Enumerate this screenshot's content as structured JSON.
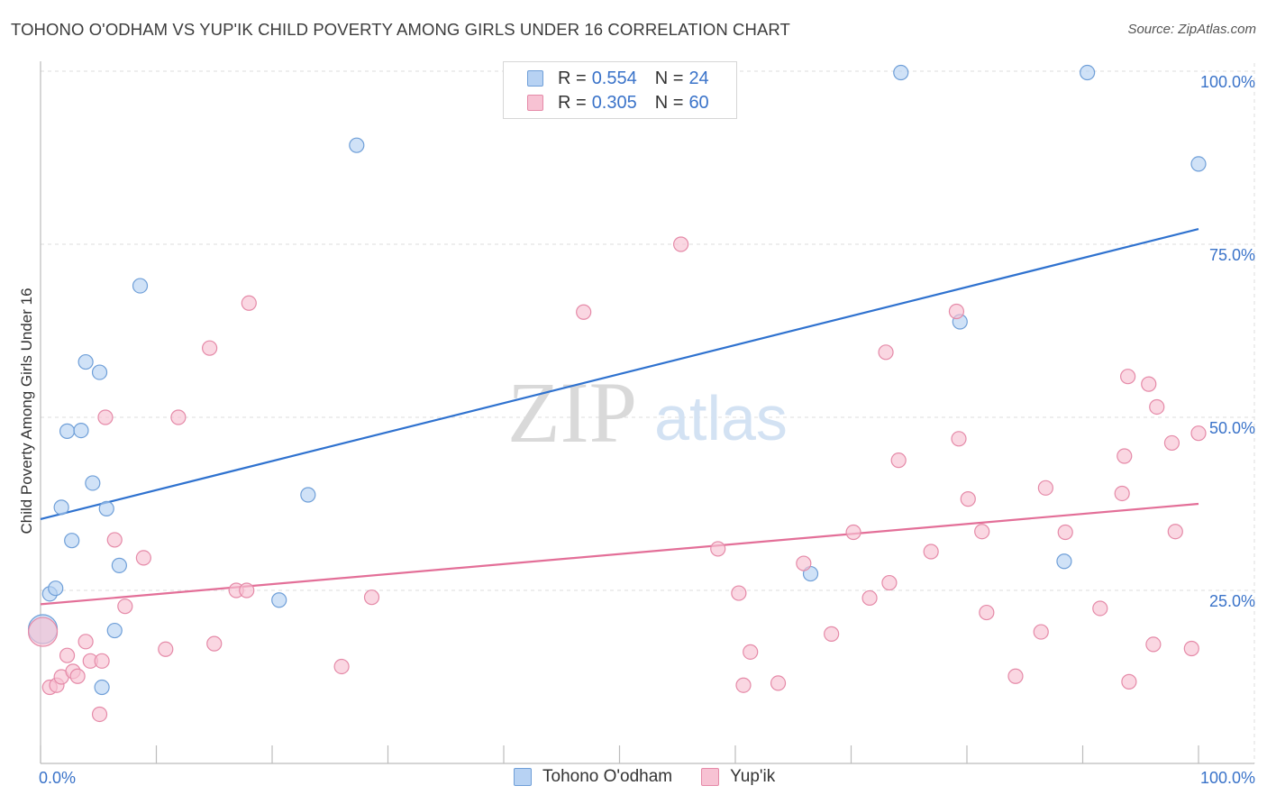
{
  "title": "TOHONO O'ODHAM VS YUP'IK CHILD POVERTY AMONG GIRLS UNDER 16 CORRELATION CHART",
  "source": "Source: ZipAtlas.com",
  "watermark": {
    "zip": "ZIP",
    "atlas": "atlas"
  },
  "colors": {
    "blue_fill": "#b7d2f3",
    "blue_stroke": "#6f9fd8",
    "blue_line": "#2f72cf",
    "pink_fill": "#f7c2d3",
    "pink_stroke": "#e58aa8",
    "pink_line": "#e36f98",
    "grid": "#dcdcdc",
    "axis_text": "#3a73c9"
  },
  "legend": {
    "rows": [
      {
        "r_label": "R =",
        "r_value": "0.554",
        "n_label": "N =",
        "n_value": "24"
      },
      {
        "r_label": "R =",
        "r_value": "0.305",
        "n_label": "N =",
        "n_value": "60"
      }
    ]
  },
  "bottom_legend": {
    "series1": "Tohono O'odham",
    "series2": "Yup'ik"
  },
  "chart_data": {
    "type": "scatter",
    "title": "TOHONO O'ODHAM VS YUP'IK CHILD POVERTY AMONG GIRLS UNDER 16 CORRELATION CHART",
    "xlabel": "",
    "ylabel": "Child Poverty Among Girls Under 16",
    "xlim": [
      0,
      100
    ],
    "ylim": [
      0,
      102
    ],
    "x_tick_labels": [
      "0.0%",
      "100.0%"
    ],
    "y_tick_labels": [
      {
        "value": 25,
        "label": "25.0%"
      },
      {
        "value": 50,
        "label": "50.0%"
      },
      {
        "value": 75,
        "label": "75.0%"
      },
      {
        "value": 100,
        "label": "100.0%"
      }
    ],
    "grid": true,
    "series": [
      {
        "name": "Tohono O'odham",
        "color": "#6f9fd8",
        "r": 0.554,
        "n": 24,
        "trend": {
          "x": [
            0,
            100
          ],
          "y": [
            35.3,
            77.2
          ]
        },
        "points": [
          {
            "x": 0.2,
            "y": 19.4,
            "big": true
          },
          {
            "x": 0.8,
            "y": 24.5
          },
          {
            "x": 1.3,
            "y": 25.3
          },
          {
            "x": 1.8,
            "y": 37.0
          },
          {
            "x": 2.3,
            "y": 48.0
          },
          {
            "x": 2.7,
            "y": 32.2
          },
          {
            "x": 3.5,
            "y": 48.1
          },
          {
            "x": 3.9,
            "y": 58.0
          },
          {
            "x": 4.5,
            "y": 40.5
          },
          {
            "x": 5.1,
            "y": 56.5
          },
          {
            "x": 5.3,
            "y": 11.0
          },
          {
            "x": 5.7,
            "y": 36.8
          },
          {
            "x": 6.4,
            "y": 19.2
          },
          {
            "x": 6.8,
            "y": 28.6
          },
          {
            "x": 8.6,
            "y": 69.0
          },
          {
            "x": 20.6,
            "y": 23.6
          },
          {
            "x": 23.1,
            "y": 38.8
          },
          {
            "x": 27.3,
            "y": 89.3
          },
          {
            "x": 66.5,
            "y": 27.4
          },
          {
            "x": 74.3,
            "y": 99.8
          },
          {
            "x": 79.4,
            "y": 63.8
          },
          {
            "x": 88.4,
            "y": 29.2
          },
          {
            "x": 90.4,
            "y": 99.8
          },
          {
            "x": 100.0,
            "y": 86.6
          }
        ]
      },
      {
        "name": "Yup'ik",
        "color": "#e58aa8",
        "r": 0.305,
        "n": 60,
        "trend": {
          "x": [
            0,
            100
          ],
          "y": [
            23.0,
            37.5
          ]
        },
        "points": [
          {
            "x": 0.2,
            "y": 19.0,
            "big": true
          },
          {
            "x": 0.8,
            "y": 11.0
          },
          {
            "x": 1.4,
            "y": 11.3
          },
          {
            "x": 1.8,
            "y": 12.5
          },
          {
            "x": 2.3,
            "y": 15.6
          },
          {
            "x": 2.8,
            "y": 13.3
          },
          {
            "x": 3.2,
            "y": 12.6
          },
          {
            "x": 3.9,
            "y": 17.6
          },
          {
            "x": 4.3,
            "y": 14.8
          },
          {
            "x": 5.1,
            "y": 7.1
          },
          {
            "x": 5.3,
            "y": 14.8
          },
          {
            "x": 5.6,
            "y": 50.0
          },
          {
            "x": 6.4,
            "y": 32.3
          },
          {
            "x": 7.3,
            "y": 22.7
          },
          {
            "x": 8.9,
            "y": 29.7
          },
          {
            "x": 10.8,
            "y": 16.5
          },
          {
            "x": 11.9,
            "y": 50.0
          },
          {
            "x": 14.6,
            "y": 60.0
          },
          {
            "x": 15.0,
            "y": 17.3
          },
          {
            "x": 16.9,
            "y": 25.0
          },
          {
            "x": 17.8,
            "y": 25.0
          },
          {
            "x": 18.0,
            "y": 66.5
          },
          {
            "x": 26.0,
            "y": 14.0
          },
          {
            "x": 28.6,
            "y": 24.0
          },
          {
            "x": 46.9,
            "y": 65.2
          },
          {
            "x": 55.3,
            "y": 75.0
          },
          {
            "x": 58.5,
            "y": 31.0
          },
          {
            "x": 60.3,
            "y": 24.6
          },
          {
            "x": 60.7,
            "y": 11.3
          },
          {
            "x": 61.3,
            "y": 16.1
          },
          {
            "x": 63.7,
            "y": 11.6
          },
          {
            "x": 65.9,
            "y": 28.9
          },
          {
            "x": 68.3,
            "y": 18.7
          },
          {
            "x": 70.2,
            "y": 33.4
          },
          {
            "x": 71.6,
            "y": 23.9
          },
          {
            "x": 73.0,
            "y": 59.4
          },
          {
            "x": 73.3,
            "y": 26.1
          },
          {
            "x": 74.1,
            "y": 43.8
          },
          {
            "x": 76.9,
            "y": 30.6
          },
          {
            "x": 79.1,
            "y": 65.3
          },
          {
            "x": 79.3,
            "y": 46.9
          },
          {
            "x": 80.1,
            "y": 38.2
          },
          {
            "x": 81.3,
            "y": 33.5
          },
          {
            "x": 81.7,
            "y": 21.8
          },
          {
            "x": 84.2,
            "y": 12.6
          },
          {
            "x": 86.4,
            "y": 19.0
          },
          {
            "x": 86.8,
            "y": 39.8
          },
          {
            "x": 88.5,
            "y": 33.4
          },
          {
            "x": 91.5,
            "y": 22.4
          },
          {
            "x": 93.4,
            "y": 39.0
          },
          {
            "x": 93.6,
            "y": 44.4
          },
          {
            "x": 93.9,
            "y": 55.9
          },
          {
            "x": 94.0,
            "y": 11.8
          },
          {
            "x": 95.7,
            "y": 54.8
          },
          {
            "x": 96.1,
            "y": 17.2
          },
          {
            "x": 96.4,
            "y": 51.5
          },
          {
            "x": 97.7,
            "y": 46.3
          },
          {
            "x": 98.0,
            "y": 33.5
          },
          {
            "x": 99.4,
            "y": 16.6
          },
          {
            "x": 100.0,
            "y": 47.7
          }
        ]
      }
    ]
  }
}
